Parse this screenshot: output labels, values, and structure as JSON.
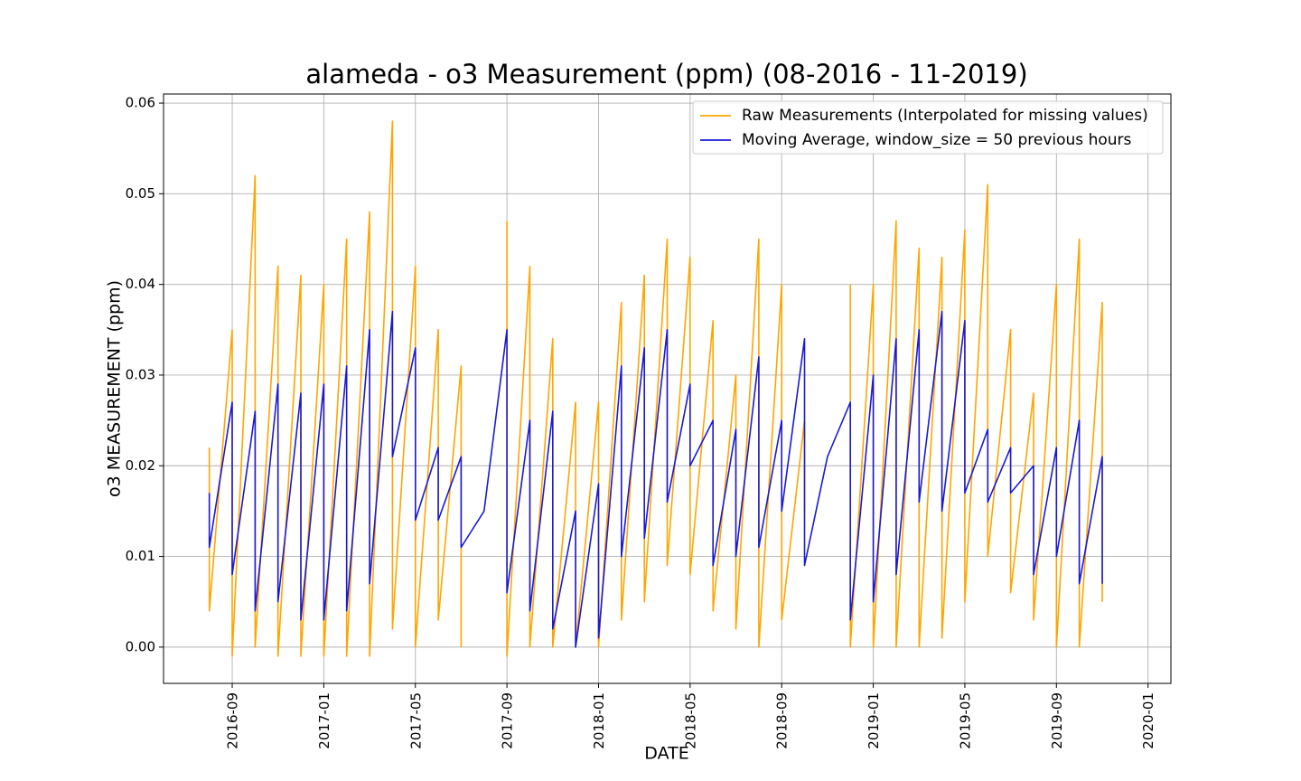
{
  "chart_data": {
    "type": "line",
    "title": "alameda - o3 Measurement (ppm) (08-2016 - 11-2019)",
    "x_label": "DATE",
    "y_label": "o3 MEASUREMENT (ppm)",
    "grid": true,
    "legend": "upper right",
    "xlim": [
      "2016-06",
      "2020-02"
    ],
    "xticks": [
      "2016-09",
      "2017-01",
      "2017-05",
      "2017-09",
      "2018-01",
      "2018-05",
      "2018-09",
      "2019-01",
      "2019-05",
      "2019-09",
      "2020-01"
    ],
    "ylim": [
      -0.004,
      0.061
    ],
    "yticks": [
      {
        "value": 0,
        "label": "0.00"
      },
      0.01,
      0.02,
      0.03,
      0.04,
      0.05,
      0.06
    ],
    "x": [
      "2016-08",
      "2016-08",
      "2016-09",
      "2016-09",
      "2016-10",
      "2016-10",
      "2016-11",
      "2016-11",
      "2016-12",
      "2016-12",
      "2017-01",
      "2017-01",
      "2017-02",
      "2017-02",
      "2017-03",
      "2017-03",
      "2017-04",
      "2017-04",
      "2017-05",
      "2017-05",
      "2017-06",
      "2017-06",
      "2017-07",
      "2017-07",
      "2017-08",
      "2017-09",
      "2017-09",
      "2017-10",
      "2017-10",
      "2017-11",
      "2017-11",
      "2017-12",
      "2017-12",
      "2018-01",
      "2018-01",
      "2018-02",
      "2018-02",
      "2018-03",
      "2018-03",
      "2018-04",
      "2018-04",
      "2018-05",
      "2018-05",
      "2018-06",
      "2018-06",
      "2018-07",
      "2018-07",
      "2018-08",
      "2018-08",
      "2018-09",
      "2018-09",
      "2018-10",
      "2018-10",
      "2018-11",
      "2018-12",
      "2018-12",
      "2019-01",
      "2019-01",
      "2019-02",
      "2019-02",
      "2019-03",
      "2019-03",
      "2019-04",
      "2019-04",
      "2019-05",
      "2019-05",
      "2019-06",
      "2019-06",
      "2019-07",
      "2019-07",
      "2019-08",
      "2019-08",
      "2019-09",
      "2019-09",
      "2019-10",
      "2019-10",
      "2019-11",
      "2019-11"
    ],
    "series": [
      {
        "name": "Raw Measurements (Interpolated for missing values)",
        "color": "#ffa500",
        "values": [
          0.022,
          0.004,
          0.035,
          -0.001,
          0.052,
          0.0,
          0.042,
          -0.001,
          0.041,
          -0.001,
          0.04,
          -0.001,
          0.045,
          -0.001,
          0.048,
          -0.001,
          0.058,
          0.002,
          0.042,
          0.0,
          0.035,
          0.003,
          0.031,
          0.0,
          null,
          0.047,
          -0.001,
          0.042,
          0.0,
          0.034,
          0.0,
          0.027,
          0.0,
          0.027,
          0.0,
          0.038,
          0.003,
          0.041,
          0.005,
          0.045,
          0.009,
          0.043,
          0.008,
          0.036,
          0.004,
          0.03,
          0.002,
          0.045,
          0.0,
          0.04,
          0.003,
          0.025,
          0.015,
          null,
          0.04,
          0.0,
          0.04,
          0.0,
          0.047,
          0.0,
          0.044,
          0.0,
          0.043,
          0.001,
          0.046,
          0.005,
          0.051,
          0.01,
          0.035,
          0.006,
          0.028,
          0.003,
          0.04,
          0.0,
          0.045,
          0.0,
          0.038,
          0.005
        ]
      },
      {
        "name": "Moving Average, window_size = 50 previous hours",
        "color": "#1a1ad6",
        "values": [
          0.017,
          0.011,
          0.027,
          0.008,
          0.026,
          0.004,
          0.029,
          0.005,
          0.028,
          0.003,
          0.029,
          0.003,
          0.031,
          0.004,
          0.035,
          0.007,
          0.037,
          0.021,
          0.033,
          0.014,
          0.022,
          0.014,
          0.021,
          0.011,
          0.015,
          0.035,
          0.006,
          0.025,
          0.004,
          0.026,
          0.002,
          0.015,
          0.0,
          0.018,
          0.001,
          0.031,
          0.01,
          0.033,
          0.012,
          0.035,
          0.016,
          0.029,
          0.02,
          0.025,
          0.009,
          0.024,
          0.01,
          0.032,
          0.011,
          0.025,
          0.015,
          0.034,
          0.009,
          0.021,
          0.027,
          0.003,
          0.03,
          0.005,
          0.034,
          0.008,
          0.035,
          0.016,
          0.037,
          0.015,
          0.036,
          0.017,
          0.024,
          0.016,
          0.022,
          0.017,
          0.02,
          0.008,
          0.022,
          0.01,
          0.025,
          0.007,
          0.021,
          0.007
        ]
      }
    ]
  }
}
